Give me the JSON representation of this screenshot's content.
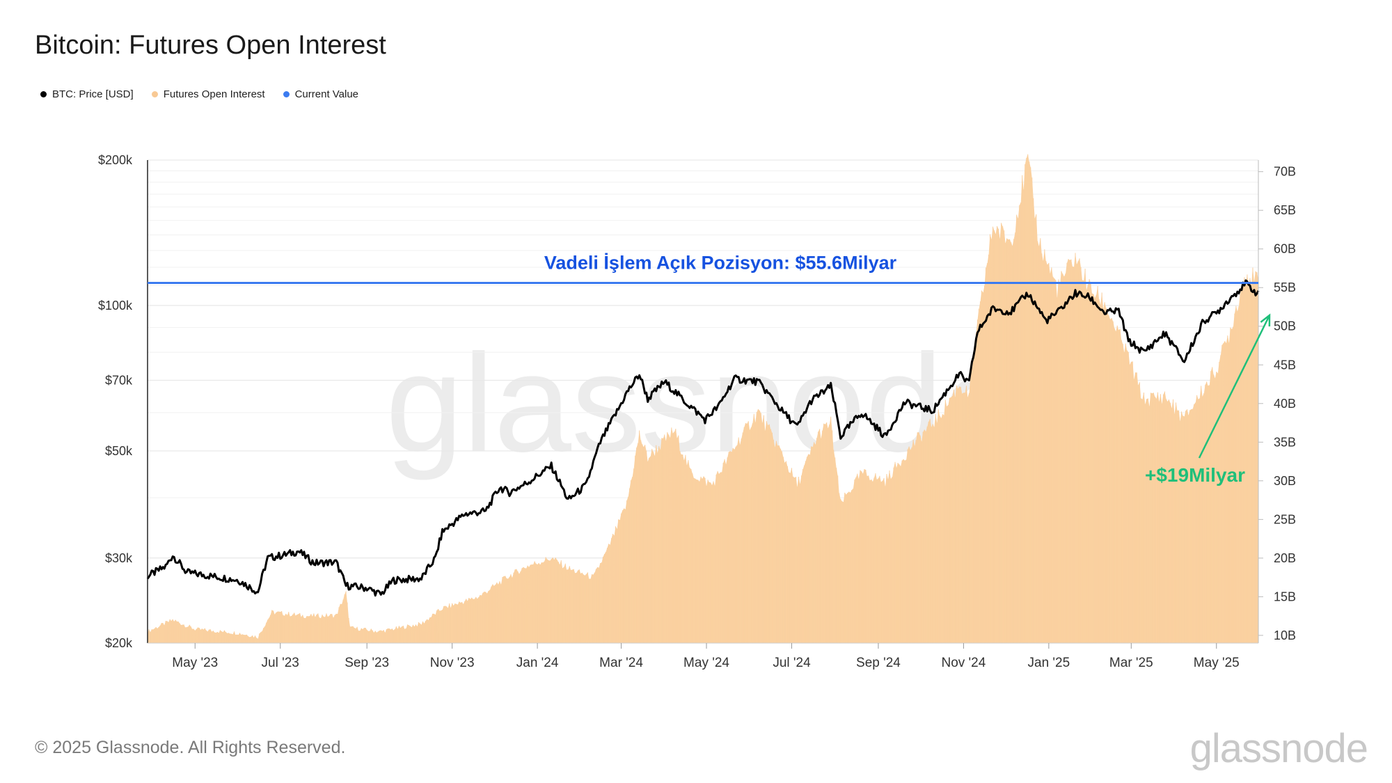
{
  "title": "Bitcoin: Futures Open Interest",
  "legend": [
    {
      "label": "BTC: Price [USD]",
      "color": "#000000"
    },
    {
      "label": "Futures Open Interest",
      "color": "#f8c994"
    },
    {
      "label": "Current Value",
      "color": "#3b7bf0"
    }
  ],
  "annotations": {
    "current_value_label": "Vadeli İşlem Açık Pozisyon: $55.6Milyar",
    "growth_label": "+$19Milyar",
    "current_value_color": "#1652e0",
    "growth_color": "#1fbf7a"
  },
  "watermark": "glassnode",
  "footer": "© 2025 Glassnode. All Rights Reserved.",
  "brand": "glassnode",
  "chart_data": {
    "type": "line",
    "x_range": [
      "2023-03-28",
      "2025-05-31"
    ],
    "x_ticks": [
      "May '23",
      "Jul '23",
      "Sep '23",
      "Nov '23",
      "Jan '24",
      "Mar '24",
      "May '24",
      "Jul '24",
      "Sep '24",
      "Nov '24",
      "Jan '25",
      "Mar '25",
      "May '25"
    ],
    "x_tick_dates": [
      "2023-05-01",
      "2023-07-01",
      "2023-09-01",
      "2023-11-01",
      "2024-01-01",
      "2024-03-01",
      "2024-05-01",
      "2024-07-01",
      "2024-09-01",
      "2024-11-01",
      "2025-01-01",
      "2025-03-01",
      "2025-05-01"
    ],
    "y_left": {
      "label": "",
      "scale": "log",
      "range": [
        20000,
        200000
      ],
      "ticks": [
        20000,
        30000,
        50000,
        70000,
        100000,
        200000
      ],
      "tick_labels": [
        "$20k",
        "$30k",
        "$50k",
        "$70k",
        "$100k",
        "$200k"
      ]
    },
    "y_right": {
      "label": "",
      "scale": "linear",
      "range": [
        9,
        71.5
      ],
      "ticks": [
        10,
        15,
        20,
        25,
        30,
        35,
        40,
        45,
        50,
        55,
        60,
        65,
        70
      ],
      "tick_labels": [
        "10B",
        "15B",
        "20B",
        "25B",
        "30B",
        "35B",
        "40B",
        "45B",
        "50B",
        "55B",
        "60B",
        "65B",
        "70B"
      ]
    },
    "current_value": 55.6,
    "series": [
      {
        "name": "BTC: Price [USD]",
        "axis": "left",
        "color": "#000000",
        "points": [
          [
            "2023-03-28",
            27500
          ],
          [
            "2023-04-10",
            28800
          ],
          [
            "2023-04-15",
            30400
          ],
          [
            "2023-04-25",
            28000
          ],
          [
            "2023-05-10",
            27600
          ],
          [
            "2023-06-01",
            27000
          ],
          [
            "2023-06-15",
            25500
          ],
          [
            "2023-06-22",
            30000
          ],
          [
            "2023-07-05",
            30500
          ],
          [
            "2023-07-14",
            31000
          ],
          [
            "2023-07-25",
            29300
          ],
          [
            "2023-08-10",
            29400
          ],
          [
            "2023-08-17",
            26300
          ],
          [
            "2023-09-01",
            26000
          ],
          [
            "2023-09-11",
            25200
          ],
          [
            "2023-09-20",
            27000
          ],
          [
            "2023-10-10",
            27200
          ],
          [
            "2023-10-20",
            30000
          ],
          [
            "2023-10-25",
            34000
          ],
          [
            "2023-11-10",
            37000
          ],
          [
            "2023-11-25",
            37500
          ],
          [
            "2023-12-05",
            42000
          ],
          [
            "2023-12-12",
            41000
          ],
          [
            "2023-12-25",
            43000
          ],
          [
            "2024-01-11",
            46500
          ],
          [
            "2024-01-23",
            39500
          ],
          [
            "2024-02-05",
            42500
          ],
          [
            "2024-02-15",
            52000
          ],
          [
            "2024-02-28",
            61000
          ],
          [
            "2024-03-05",
            66000
          ],
          [
            "2024-03-14",
            72000
          ],
          [
            "2024-03-20",
            64000
          ],
          [
            "2024-04-01",
            69500
          ],
          [
            "2024-04-15",
            63500
          ],
          [
            "2024-04-30",
            58000
          ],
          [
            "2024-05-10",
            62000
          ],
          [
            "2024-05-21",
            70500
          ],
          [
            "2024-06-07",
            69500
          ],
          [
            "2024-06-24",
            60500
          ],
          [
            "2024-07-05",
            56000
          ],
          [
            "2024-07-15",
            63500
          ],
          [
            "2024-07-29",
            68000
          ],
          [
            "2024-08-05",
            53500
          ],
          [
            "2024-08-20",
            60000
          ],
          [
            "2024-09-06",
            53500
          ],
          [
            "2024-09-20",
            63000
          ],
          [
            "2024-10-10",
            60500
          ],
          [
            "2024-10-29",
            72000
          ],
          [
            "2024-11-05",
            69000
          ],
          [
            "2024-11-11",
            88000
          ],
          [
            "2024-11-22",
            98500
          ],
          [
            "2024-12-05",
            97000
          ],
          [
            "2024-12-17",
            106000
          ],
          [
            "2024-12-30",
            93000
          ],
          [
            "2025-01-07",
            96500
          ],
          [
            "2025-01-20",
            106000
          ],
          [
            "2025-01-30",
            104000
          ],
          [
            "2025-02-10",
            96500
          ],
          [
            "2025-02-20",
            97500
          ],
          [
            "2025-02-27",
            84500
          ],
          [
            "2025-03-10",
            80000
          ],
          [
            "2025-03-25",
            87500
          ],
          [
            "2025-04-08",
            76500
          ],
          [
            "2025-04-22",
            93000
          ],
          [
            "2025-05-01",
            96500
          ],
          [
            "2025-05-10",
            103000
          ],
          [
            "2025-05-22",
            111000
          ],
          [
            "2025-05-31",
            105500
          ]
        ]
      },
      {
        "name": "Futures Open Interest",
        "axis": "right",
        "color": "#f8c994",
        "points": [
          [
            "2023-03-28",
            10.5
          ],
          [
            "2023-04-15",
            12.0
          ],
          [
            "2023-05-01",
            10.8
          ],
          [
            "2023-06-01",
            10.3
          ],
          [
            "2023-06-15",
            9.8
          ],
          [
            "2023-06-25",
            13.0
          ],
          [
            "2023-07-20",
            12.5
          ],
          [
            "2023-08-10",
            12.6
          ],
          [
            "2023-08-17",
            15.5
          ],
          [
            "2023-08-20",
            11.0
          ],
          [
            "2023-09-10",
            10.5
          ],
          [
            "2023-10-10",
            11.5
          ],
          [
            "2023-10-25",
            13.5
          ],
          [
            "2023-11-20",
            15.0
          ],
          [
            "2023-12-10",
            17.5
          ],
          [
            "2023-12-25",
            19.0
          ],
          [
            "2024-01-11",
            20.0
          ],
          [
            "2024-01-25",
            18.5
          ],
          [
            "2024-02-10",
            17.5
          ],
          [
            "2024-02-20",
            21.0
          ],
          [
            "2024-03-05",
            27.0
          ],
          [
            "2024-03-14",
            36.0
          ],
          [
            "2024-03-20",
            33.0
          ],
          [
            "2024-04-08",
            36.5
          ],
          [
            "2024-04-20",
            31.0
          ],
          [
            "2024-05-05",
            29.5
          ],
          [
            "2024-05-25",
            35.5
          ],
          [
            "2024-06-07",
            39.0
          ],
          [
            "2024-06-24",
            33.5
          ],
          [
            "2024-07-05",
            29.5
          ],
          [
            "2024-07-20",
            36.0
          ],
          [
            "2024-07-29",
            37.5
          ],
          [
            "2024-08-05",
            27.0
          ],
          [
            "2024-08-20",
            31.0
          ],
          [
            "2024-09-06",
            30.0
          ],
          [
            "2024-09-27",
            35.0
          ],
          [
            "2024-10-15",
            38.5
          ],
          [
            "2024-10-29",
            42.5
          ],
          [
            "2024-11-05",
            41.0
          ],
          [
            "2024-11-11",
            50.0
          ],
          [
            "2024-11-22",
            63.0
          ],
          [
            "2024-12-05",
            61.0
          ],
          [
            "2024-12-17",
            71.5
          ],
          [
            "2024-12-25",
            61.0
          ],
          [
            "2025-01-07",
            55.0
          ],
          [
            "2025-01-20",
            59.0
          ],
          [
            "2025-01-30",
            55.0
          ],
          [
            "2025-02-10",
            53.0
          ],
          [
            "2025-02-27",
            46.0
          ],
          [
            "2025-03-10",
            40.5
          ],
          [
            "2025-03-25",
            41.0
          ],
          [
            "2025-04-08",
            38.0
          ],
          [
            "2025-04-22",
            42.0
          ],
          [
            "2025-05-01",
            44.5
          ],
          [
            "2025-05-10",
            49.0
          ],
          [
            "2025-05-22",
            57.0
          ],
          [
            "2025-05-31",
            55.6
          ]
        ]
      }
    ]
  }
}
